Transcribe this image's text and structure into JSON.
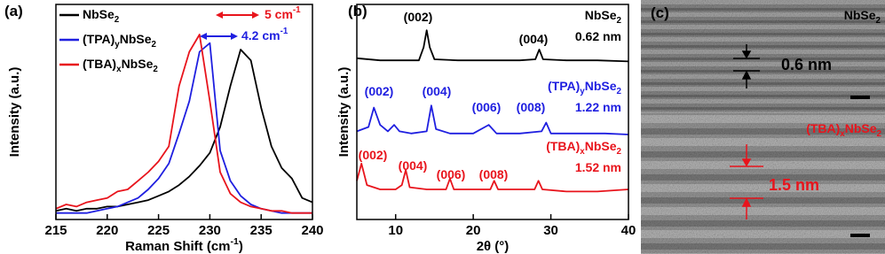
{
  "chart_data": [
    {
      "type": "line",
      "label": "(a)",
      "xlabel": "Raman Shift (cm-1)",
      "ylabel": "Intensity (a.u.)",
      "xlim": [
        215,
        240
      ],
      "xticks": [
        215,
        220,
        225,
        230,
        235,
        240
      ],
      "ylim": [
        0,
        1
      ],
      "legend": "top-left",
      "x": [
        215,
        216,
        217,
        218,
        219,
        220,
        221,
        222,
        223,
        224,
        225,
        226,
        227,
        228,
        229,
        230,
        231,
        232,
        233,
        234,
        235,
        236,
        237,
        238,
        239,
        240
      ],
      "series": [
        {
          "name": "NbSe2",
          "color": "#000000",
          "values": [
            0.04,
            0.05,
            0.04,
            0.05,
            0.05,
            0.06,
            0.06,
            0.07,
            0.08,
            0.09,
            0.11,
            0.13,
            0.16,
            0.2,
            0.25,
            0.31,
            0.43,
            0.62,
            0.79,
            0.74,
            0.52,
            0.34,
            0.24,
            0.19,
            0.1,
            0.08
          ]
        },
        {
          "name": "(TPA)yNbSe2",
          "color": "#1f1fe0",
          "values": [
            0.03,
            0.03,
            0.03,
            0.03,
            0.04,
            0.05,
            0.06,
            0.08,
            0.1,
            0.14,
            0.19,
            0.26,
            0.4,
            0.55,
            0.78,
            0.82,
            0.32,
            0.18,
            0.11,
            0.07,
            0.05,
            0.04,
            0.03,
            0.03,
            0.03,
            0.03
          ]
        },
        {
          "name": "(TBA)xNbSe2",
          "color": "#e8141c",
          "values": [
            0.05,
            0.07,
            0.06,
            0.08,
            0.09,
            0.1,
            0.13,
            0.14,
            0.18,
            0.22,
            0.27,
            0.34,
            0.62,
            0.78,
            0.86,
            0.55,
            0.22,
            0.12,
            0.08,
            0.06,
            0.05,
            0.04,
            0.04,
            0.03,
            0.03,
            0.03
          ]
        }
      ],
      "annotations": [
        {
          "text": "5 cm-1",
          "color": "#e8141c"
        },
        {
          "text": "4.2 cm-1",
          "color": "#1f1fe0"
        }
      ]
    },
    {
      "type": "line",
      "label": "(b)",
      "xlabel": "2θ (°)",
      "ylabel": "Intensity (a.u.)",
      "xlim": [
        5,
        40
      ],
      "xticks": [
        10,
        20,
        30,
        40
      ],
      "ylim": [
        0,
        1
      ],
      "series": [
        {
          "name": "NbSe2",
          "color": "#000000",
          "x": [
            5,
            8,
            11,
            13,
            13.6,
            14,
            14.4,
            15,
            18,
            22,
            26,
            28,
            28.5,
            29,
            32,
            36,
            40
          ],
          "values": [
            0.75,
            0.74,
            0.74,
            0.74,
            0.8,
            0.88,
            0.8,
            0.745,
            0.74,
            0.74,
            0.74,
            0.745,
            0.79,
            0.745,
            0.74,
            0.74,
            0.735
          ]
        },
        {
          "name": "(TPA)yNbSe2",
          "color": "#1f1fe0",
          "x": [
            5,
            6.5,
            7.2,
            8,
            9,
            9.8,
            10.5,
            12,
            14,
            14.6,
            15.2,
            17,
            20,
            22,
            23,
            26,
            28.8,
            29.4,
            30,
            33,
            37,
            40
          ],
          "values": [
            0.41,
            0.43,
            0.52,
            0.44,
            0.41,
            0.44,
            0.41,
            0.4,
            0.41,
            0.53,
            0.42,
            0.4,
            0.4,
            0.44,
            0.4,
            0.4,
            0.41,
            0.45,
            0.4,
            0.4,
            0.4,
            0.395
          ]
        },
        {
          "name": "(TBA)xNbSe2",
          "color": "#e8141c",
          "x": [
            5,
            5.6,
            6.3,
            8,
            10,
            10.8,
            11.3,
            11.8,
            14,
            16.5,
            17,
            17.5,
            20,
            22.2,
            22.7,
            23.2,
            26,
            27.9,
            28.4,
            28.9,
            32,
            36,
            40
          ],
          "values": [
            0.18,
            0.26,
            0.16,
            0.14,
            0.14,
            0.16,
            0.23,
            0.15,
            0.14,
            0.14,
            0.19,
            0.14,
            0.14,
            0.14,
            0.18,
            0.14,
            0.14,
            0.14,
            0.18,
            0.14,
            0.13,
            0.13,
            0.14
          ]
        }
      ],
      "annotations": [
        {
          "text": "(002)",
          "color": "#000000"
        },
        {
          "text": "(004)",
          "color": "#000000"
        },
        {
          "text": "0.62 nm",
          "color": "#000000"
        },
        {
          "text": "(002)",
          "color": "#1f1fe0"
        },
        {
          "text": "(004)",
          "color": "#1f1fe0"
        },
        {
          "text": "(006)",
          "color": "#1f1fe0"
        },
        {
          "text": "(008)",
          "color": "#1f1fe0"
        },
        {
          "text": "1.22 nm",
          "color": "#1f1fe0"
        },
        {
          "text": "(002)",
          "color": "#e8141c"
        },
        {
          "text": "(004)",
          "color": "#e8141c"
        },
        {
          "text": "(006)",
          "color": "#e8141c"
        },
        {
          "text": "(008)",
          "color": "#e8141c"
        },
        {
          "text": "1.52 nm",
          "color": "#e8141c"
        }
      ]
    }
  ],
  "image_panel": {
    "label": "(c)",
    "top_sample": "NbSe2",
    "top_spacing": "0.6 nm",
    "bottom_sample": "(TBA)xNbSe2",
    "bottom_spacing": "1.5 nm"
  }
}
